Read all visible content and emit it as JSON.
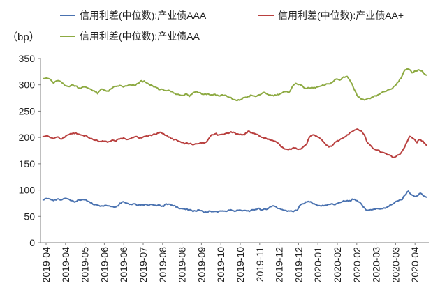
{
  "chart_data": {
    "type": "line",
    "unit_label": "（bp）",
    "ylim": [
      0,
      350
    ],
    "y_ticks": [
      "0",
      "50",
      "100",
      "150",
      "200",
      "250",
      "300",
      "350"
    ],
    "x_ticks": [
      "2019-04",
      "2019-04",
      "2019-05",
      "2019-06",
      "2019-06",
      "2019-07",
      "2019-08",
      "2019-08",
      "2019-09",
      "2019-10",
      "2019-10",
      "2019-11",
      "2019-12",
      "2019-12",
      "2020-01",
      "2020-02",
      "2020-02",
      "2020-03",
      "2020-03",
      "2020-04"
    ],
    "grid": false,
    "legend_position": "top",
    "series": [
      {
        "name": "信用利差(中位数):产业债AAA",
        "color": "#4a72b0",
        "values": [
          [
            0,
            82
          ],
          [
            3,
            84
          ],
          [
            6,
            83
          ],
          [
            9,
            80
          ],
          [
            12,
            83
          ],
          [
            15,
            81
          ],
          [
            18,
            84
          ],
          [
            21,
            83
          ],
          [
            24,
            80
          ],
          [
            27,
            78
          ],
          [
            30,
            81
          ],
          [
            33,
            82
          ],
          [
            36,
            80
          ],
          [
            39,
            76
          ],
          [
            42,
            72
          ],
          [
            45,
            71
          ],
          [
            48,
            70
          ],
          [
            51,
            71
          ],
          [
            54,
            70
          ],
          [
            57,
            69
          ],
          [
            60,
            68
          ],
          [
            62,
            70
          ],
          [
            63,
            75
          ],
          [
            66,
            78
          ],
          [
            69,
            75
          ],
          [
            72,
            73
          ],
          [
            75,
            74
          ],
          [
            78,
            71
          ],
          [
            81,
            72
          ],
          [
            84,
            73
          ],
          [
            87,
            71
          ],
          [
            90,
            72
          ],
          [
            93,
            70
          ],
          [
            96,
            71
          ],
          [
            99,
            69
          ],
          [
            101,
            74
          ],
          [
            104,
            73
          ],
          [
            107,
            70
          ],
          [
            110,
            68
          ],
          [
            113,
            65
          ],
          [
            116,
            64
          ],
          [
            119,
            62
          ],
          [
            122,
            61
          ],
          [
            125,
            60
          ],
          [
            128,
            62
          ],
          [
            131,
            59
          ],
          [
            134,
            58
          ],
          [
            137,
            60
          ],
          [
            140,
            59
          ],
          [
            143,
            58
          ],
          [
            146,
            60
          ],
          [
            149,
            60
          ],
          [
            152,
            62
          ],
          [
            155,
            61
          ],
          [
            158,
            60
          ],
          [
            161,
            62
          ],
          [
            164,
            61
          ],
          [
            167,
            60
          ],
          [
            170,
            61
          ],
          [
            173,
            62
          ],
          [
            176,
            65
          ],
          [
            179,
            62
          ],
          [
            182,
            64
          ],
          [
            185,
            66
          ],
          [
            188,
            70
          ],
          [
            190,
            69
          ],
          [
            193,
            65
          ],
          [
            196,
            63
          ],
          [
            199,
            61
          ],
          [
            202,
            60
          ],
          [
            205,
            59
          ],
          [
            208,
            61
          ],
          [
            210,
            70
          ],
          [
            213,
            74
          ],
          [
            216,
            77
          ],
          [
            219,
            78
          ],
          [
            221,
            74
          ],
          [
            224,
            72
          ],
          [
            227,
            70
          ],
          [
            230,
            70
          ],
          [
            233,
            72
          ],
          [
            236,
            74
          ],
          [
            239,
            72
          ],
          [
            242,
            76
          ],
          [
            245,
            78
          ],
          [
            248,
            79
          ],
          [
            251,
            80
          ],
          [
            254,
            82
          ],
          [
            257,
            80
          ],
          [
            260,
            75
          ],
          [
            262,
            68
          ],
          [
            264,
            63
          ],
          [
            267,
            62
          ],
          [
            270,
            63
          ],
          [
            273,
            65
          ],
          [
            276,
            64
          ],
          [
            279,
            66
          ],
          [
            282,
            68
          ],
          [
            285,
            72
          ],
          [
            288,
            77
          ],
          [
            291,
            80
          ],
          [
            294,
            82
          ],
          [
            296,
            90
          ],
          [
            299,
            98
          ],
          [
            301,
            92
          ],
          [
            304,
            88
          ],
          [
            307,
            90
          ],
          [
            309,
            94
          ],
          [
            312,
            88
          ],
          [
            314,
            86
          ]
        ]
      },
      {
        "name": "信用利差(中位数):产业债AA+",
        "color": "#b9403f",
        "values": [
          [
            0,
            201
          ],
          [
            3,
            203
          ],
          [
            6,
            200
          ],
          [
            9,
            198
          ],
          [
            12,
            201
          ],
          [
            15,
            197
          ],
          [
            18,
            200
          ],
          [
            21,
            205
          ],
          [
            24,
            207
          ],
          [
            27,
            209
          ],
          [
            30,
            206
          ],
          [
            33,
            204
          ],
          [
            36,
            203
          ],
          [
            39,
            198
          ],
          [
            42,
            195
          ],
          [
            45,
            194
          ],
          [
            48,
            192
          ],
          [
            51,
            193
          ],
          [
            54,
            192
          ],
          [
            57,
            195
          ],
          [
            60,
            193
          ],
          [
            63,
            197
          ],
          [
            66,
            199
          ],
          [
            69,
            196
          ],
          [
            72,
            198
          ],
          [
            75,
            201
          ],
          [
            78,
            200
          ],
          [
            81,
            199
          ],
          [
            84,
            202
          ],
          [
            87,
            204
          ],
          [
            90,
            205
          ],
          [
            93,
            206
          ],
          [
            96,
            210
          ],
          [
            99,
            207
          ],
          [
            102,
            203
          ],
          [
            105,
            198
          ],
          [
            108,
            196
          ],
          [
            111,
            193
          ],
          [
            114,
            190
          ],
          [
            117,
            189
          ],
          [
            120,
            188
          ],
          [
            123,
            186
          ],
          [
            126,
            188
          ],
          [
            129,
            190
          ],
          [
            132,
            189
          ],
          [
            135,
            195
          ],
          [
            138,
            205
          ],
          [
            141,
            207
          ],
          [
            144,
            205
          ],
          [
            147,
            206
          ],
          [
            150,
            208
          ],
          [
            153,
            209
          ],
          [
            156,
            210
          ],
          [
            159,
            207
          ],
          [
            162,
            206
          ],
          [
            165,
            205
          ],
          [
            168,
            212
          ],
          [
            171,
            209
          ],
          [
            174,
            206
          ],
          [
            177,
            203
          ],
          [
            180,
            200
          ],
          [
            183,
            198
          ],
          [
            186,
            195
          ],
          [
            189,
            193
          ],
          [
            192,
            190
          ],
          [
            195,
            182
          ],
          [
            198,
            178
          ],
          [
            201,
            177
          ],
          [
            204,
            179
          ],
          [
            207,
            180
          ],
          [
            210,
            178
          ],
          [
            213,
            182
          ],
          [
            216,
            188
          ],
          [
            218,
            200
          ],
          [
            221,
            205
          ],
          [
            223,
            203
          ],
          [
            226,
            200
          ],
          [
            229,
            193
          ],
          [
            231,
            188
          ],
          [
            234,
            182
          ],
          [
            237,
            185
          ],
          [
            240,
            192
          ],
          [
            243,
            196
          ],
          [
            246,
            200
          ],
          [
            249,
            205
          ],
          [
            252,
            210
          ],
          [
            255,
            214
          ],
          [
            257,
            216
          ],
          [
            260,
            213
          ],
          [
            263,
            205
          ],
          [
            265,
            192
          ],
          [
            268,
            185
          ],
          [
            271,
            178
          ],
          [
            274,
            176
          ],
          [
            277,
            172
          ],
          [
            280,
            170
          ],
          [
            283,
            167
          ],
          [
            286,
            162
          ],
          [
            289,
            164
          ],
          [
            292,
            168
          ],
          [
            295,
            178
          ],
          [
            298,
            192
          ],
          [
            300,
            202
          ],
          [
            303,
            198
          ],
          [
            306,
            190
          ],
          [
            308,
            196
          ],
          [
            311,
            193
          ],
          [
            314,
            184
          ]
        ]
      },
      {
        "name": "信用利差(中位数):产业债AA",
        "color": "#8daa42",
        "values": [
          [
            0,
            312
          ],
          [
            3,
            313
          ],
          [
            6,
            311
          ],
          [
            9,
            303
          ],
          [
            12,
            308
          ],
          [
            15,
            306
          ],
          [
            18,
            299
          ],
          [
            21,
            297
          ],
          [
            24,
            300
          ],
          [
            27,
            298
          ],
          [
            30,
            294
          ],
          [
            33,
            296
          ],
          [
            36,
            295
          ],
          [
            39,
            292
          ],
          [
            42,
            289
          ],
          [
            45,
            283
          ],
          [
            48,
            292
          ],
          [
            51,
            290
          ],
          [
            54,
            288
          ],
          [
            57,
            294
          ],
          [
            60,
            297
          ],
          [
            63,
            299
          ],
          [
            66,
            296
          ],
          [
            69,
            298
          ],
          [
            72,
            300
          ],
          [
            75,
            299
          ],
          [
            78,
            303
          ],
          [
            81,
            308
          ],
          [
            84,
            305
          ],
          [
            87,
            301
          ],
          [
            90,
            298
          ],
          [
            93,
            295
          ],
          [
            96,
            291
          ],
          [
            99,
            290
          ],
          [
            102,
            289
          ],
          [
            105,
            287
          ],
          [
            108,
            284
          ],
          [
            111,
            282
          ],
          [
            114,
            280
          ],
          [
            117,
            283
          ],
          [
            120,
            278
          ],
          [
            123,
            285
          ],
          [
            126,
            287
          ],
          [
            129,
            285
          ],
          [
            132,
            282
          ],
          [
            135,
            283
          ],
          [
            138,
            281
          ],
          [
            141,
            282
          ],
          [
            144,
            279
          ],
          [
            147,
            281
          ],
          [
            150,
            280
          ],
          [
            153,
            276
          ],
          [
            156,
            272
          ],
          [
            159,
            270
          ],
          [
            162,
            272
          ],
          [
            165,
            276
          ],
          [
            168,
            278
          ],
          [
            171,
            280
          ],
          [
            174,
            278
          ],
          [
            177,
            281
          ],
          [
            180,
            285
          ],
          [
            183,
            283
          ],
          [
            186,
            281
          ],
          [
            189,
            279
          ],
          [
            192,
            282
          ],
          [
            195,
            284
          ],
          [
            198,
            287
          ],
          [
            201,
            285
          ],
          [
            204,
            296
          ],
          [
            207,
            303
          ],
          [
            210,
            301
          ],
          [
            213,
            296
          ],
          [
            216,
            293
          ],
          [
            219,
            294
          ],
          [
            222,
            295
          ],
          [
            225,
            296
          ],
          [
            228,
            298
          ],
          [
            231,
            300
          ],
          [
            234,
            302
          ],
          [
            237,
            305
          ],
          [
            240,
            311
          ],
          [
            243,
            309
          ],
          [
            246,
            315
          ],
          [
            249,
            316
          ],
          [
            252,
            305
          ],
          [
            254,
            295
          ],
          [
            256,
            286
          ],
          [
            258,
            277
          ],
          [
            261,
            273
          ],
          [
            264,
            272
          ],
          [
            267,
            274
          ],
          [
            270,
            277
          ],
          [
            273,
            279
          ],
          [
            276,
            283
          ],
          [
            279,
            287
          ],
          [
            282,
            290
          ],
          [
            285,
            292
          ],
          [
            288,
            298
          ],
          [
            291,
            306
          ],
          [
            294,
            318
          ],
          [
            296,
            328
          ],
          [
            299,
            330
          ],
          [
            302,
            323
          ],
          [
            305,
            326
          ],
          [
            308,
            328
          ],
          [
            311,
            324
          ],
          [
            314,
            318
          ]
        ]
      }
    ]
  }
}
